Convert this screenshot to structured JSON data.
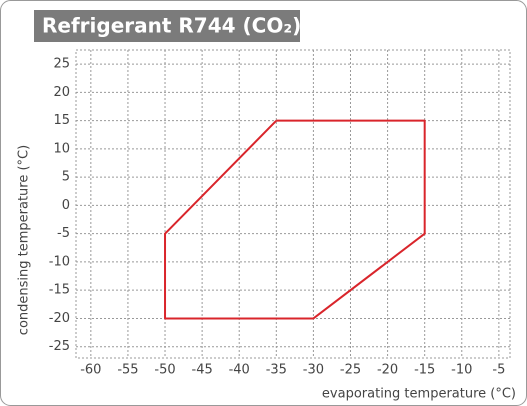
{
  "chart_data": {
    "type": "line",
    "title": "Refrigerant R744 (CO₂)",
    "x_label": "evaporating temperature (°C)",
    "y_label": "condensing temperature (°C)",
    "x": [
      -35,
      -15,
      -15,
      -30,
      -50,
      -50,
      -35
    ],
    "series": [
      {
        "color": "#d9252b",
        "values": [
          15,
          15,
          -5,
          -20,
          -20,
          -5,
          15
        ]
      }
    ],
    "xlim": [
      -62,
      -3.5
    ],
    "ylim": [
      -27,
      27.5
    ],
    "xticks": [
      -60,
      -55,
      -50,
      -45,
      -40,
      -35,
      -30,
      -25,
      -20,
      -15,
      -10,
      -5
    ],
    "yticks": [
      -25,
      -20,
      -15,
      -10,
      -5,
      0,
      5,
      10,
      15,
      20,
      25
    ],
    "grid": true
  }
}
